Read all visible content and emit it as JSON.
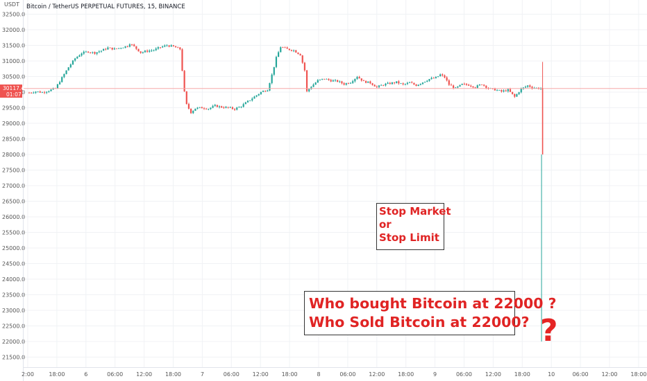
{
  "chart_data": {
    "type": "candlestick",
    "title": "Bitcoin / TetherUS PERPETUAL FUTURES, 15, BINANCE",
    "currency_label": "USDT",
    "ylim": [
      21250,
      32550
    ],
    "y_ticks": [
      "32500.0",
      "32000.0",
      "31500.0",
      "31000.0",
      "30500.0",
      "30000.0",
      "29500.0",
      "29000.0",
      "28500.0",
      "28000.0",
      "27500.0",
      "27000.0",
      "26500.0",
      "26000.0",
      "25500.0",
      "25000.0",
      "24500.0",
      "24000.0",
      "23500.0",
      "23000.0",
      "22500.0",
      "22000.0",
      "21500.0"
    ],
    "x_ticks": [
      "2:00",
      "18:00",
      "6",
      "06:00",
      "12:00",
      "18:00",
      "7",
      "06:00",
      "12:00",
      "18:00",
      "8",
      "06:00",
      "12:00",
      "18:00",
      "9",
      "06:00",
      "12:00",
      "18:00",
      "10",
      "06:00",
      "12:00",
      "18:00"
    ],
    "last_price": {
      "value": "30117.4",
      "countdown": "01:07"
    },
    "price_path": [
      [
        0,
        29980
      ],
      [
        3,
        30020
      ],
      [
        6,
        29990
      ],
      [
        9,
        30050
      ],
      [
        12,
        30120
      ],
      [
        15,
        30460
      ],
      [
        18,
        30800
      ],
      [
        21,
        31080
      ],
      [
        24,
        31250
      ],
      [
        27,
        31300
      ],
      [
        30,
        31260
      ],
      [
        33,
        31330
      ],
      [
        36,
        31420
      ],
      [
        39,
        31380
      ],
      [
        42,
        31430
      ],
      [
        45,
        31480
      ],
      [
        46,
        31560
      ],
      [
        48,
        31460
      ],
      [
        51,
        31270
      ],
      [
        54,
        31320
      ],
      [
        57,
        31350
      ],
      [
        60,
        31440
      ],
      [
        63,
        31500
      ],
      [
        66,
        31460
      ],
      [
        69,
        31380
      ],
      [
        70,
        30700
      ],
      [
        71,
        30000
      ],
      [
        72,
        29600
      ],
      [
        74,
        29350
      ],
      [
        76,
        29480
      ],
      [
        79,
        29500
      ],
      [
        82,
        29470
      ],
      [
        85,
        29560
      ],
      [
        88,
        29520
      ],
      [
        91,
        29500
      ],
      [
        94,
        29460
      ],
      [
        97,
        29550
      ],
      [
        100,
        29700
      ],
      [
        103,
        29850
      ],
      [
        106,
        30000
      ],
      [
        109,
        30080
      ],
      [
        111,
        30550
      ],
      [
        113,
        31100
      ],
      [
        115,
        31450
      ],
      [
        118,
        31380
      ],
      [
        121,
        31340
      ],
      [
        124,
        31200
      ],
      [
        126,
        30700
      ],
      [
        127,
        30020
      ],
      [
        129,
        30180
      ],
      [
        132,
        30370
      ],
      [
        135,
        30430
      ],
      [
        138,
        30370
      ],
      [
        141,
        30350
      ],
      [
        144,
        30260
      ],
      [
        147,
        30320
      ],
      [
        150,
        30500
      ],
      [
        153,
        30340
      ],
      [
        156,
        30300
      ],
      [
        159,
        30160
      ],
      [
        162,
        30240
      ],
      [
        165,
        30280
      ],
      [
        168,
        30320
      ],
      [
        171,
        30240
      ],
      [
        174,
        30300
      ],
      [
        177,
        30220
      ],
      [
        180,
        30320
      ],
      [
        183,
        30420
      ],
      [
        186,
        30460
      ],
      [
        188,
        30560
      ],
      [
        190,
        30480
      ],
      [
        192,
        30240
      ],
      [
        195,
        30120
      ],
      [
        198,
        30250
      ],
      [
        201,
        30230
      ],
      [
        204,
        30160
      ],
      [
        207,
        30260
      ],
      [
        210,
        30120
      ],
      [
        213,
        30080
      ],
      [
        216,
        30020
      ],
      [
        219,
        30070
      ],
      [
        222,
        29850
      ],
      [
        225,
        30100
      ],
      [
        228,
        30210
      ],
      [
        230,
        30150
      ],
      [
        232,
        30130
      ],
      [
        234,
        30117
      ]
    ],
    "spike": {
      "open": 30117,
      "high": 30970,
      "low": 22000,
      "close": 28000
    },
    "annotations": [
      {
        "lines": [
          "Stop Market",
          "or",
          "Stop Limit"
        ]
      },
      {
        "lines": [
          "Who bought Bitcoin at 22000 ?",
          "Who Sold Bitcoin at 22000?"
        ]
      },
      {
        "text": "?"
      }
    ],
    "colors": {
      "up": "#26a69a",
      "down": "#ef5350",
      "price_line": "#f7a8a8",
      "annotation": "#e02424"
    },
    "grid": true
  }
}
